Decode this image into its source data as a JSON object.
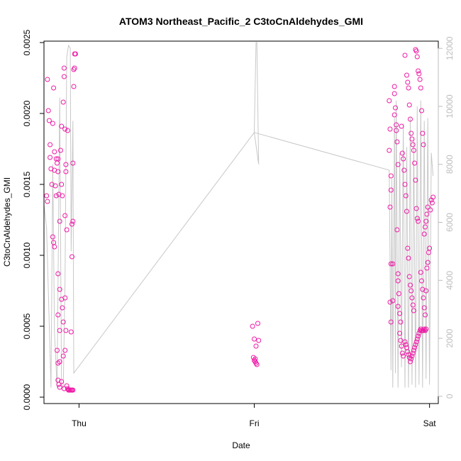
{
  "chart_data": {
    "type": "scatter",
    "title": "ATOM3 Northeast_Pacific_2 C3toCnAldehydes_GMI",
    "xlabel": "Date",
    "ylabel": "C3toCnAldehydes_GMI",
    "x_ticks": [
      "Thu",
      "Fri",
      "Sat"
    ],
    "x_range_days": [
      -0.2,
      2.05
    ],
    "y_ticks": [
      "0.0000",
      "0.0005",
      "0.0010",
      "0.0015",
      "0.0020",
      "0.0025"
    ],
    "y_tick_values": [
      0,
      0.0005,
      0.001,
      0.0015,
      0.002,
      0.0025
    ],
    "y_range": [
      -4.5e-05,
      0.00251
    ],
    "y2_ticks": [
      "0",
      "2000",
      "4000",
      "6000",
      "8000",
      "10000",
      "12000"
    ],
    "y2_tick_values": [
      0,
      2000,
      4000,
      6000,
      8000,
      10000,
      12000
    ],
    "y2_range": [
      -250,
      12250
    ],
    "colors": {
      "points": "#ee1ba6",
      "line": "#c8c8c8",
      "axis": "#000000",
      "secondary_axis": "#bdbdbd"
    },
    "series": [
      {
        "role": "points",
        "points": [
          [
            -0.18,
            0.00224
          ],
          [
            -0.175,
            0.00202
          ],
          [
            -0.17,
            0.00195
          ],
          [
            -0.165,
            0.00178
          ],
          [
            -0.165,
            0.00169
          ],
          [
            -0.16,
            0.00161
          ],
          [
            -0.155,
            0.0015
          ],
          [
            -0.185,
            0.00142
          ],
          [
            -0.18,
            0.00138
          ],
          [
            -0.15,
            0.00193
          ],
          [
            -0.145,
            0.00218
          ],
          [
            -0.14,
            0.00173
          ],
          [
            -0.14,
            0.0016
          ],
          [
            -0.135,
            0.00149
          ],
          [
            -0.13,
            0.00142
          ],
          [
            -0.15,
            0.00113
          ],
          [
            -0.145,
            0.00109
          ],
          [
            -0.14,
            0.00106
          ],
          [
            -0.13,
            0.00168
          ],
          [
            -0.125,
            0.00165
          ],
          [
            -0.12,
            0.00168
          ],
          [
            -0.12,
            0.00159
          ],
          [
            -0.115,
            0.00143
          ],
          [
            -0.11,
            0.00124
          ],
          [
            -0.105,
            0.00174
          ],
          [
            -0.1,
            0.00191
          ],
          [
            -0.1,
            0.0015
          ],
          [
            -0.095,
            0.00142
          ],
          [
            -0.09,
            0.00208
          ],
          [
            -0.085,
            0.00232
          ],
          [
            -0.085,
            0.00226
          ],
          [
            -0.08,
            0.00189
          ],
          [
            -0.075,
            0.00164
          ],
          [
            -0.075,
            0.00159
          ],
          [
            -0.07,
            0.00118
          ],
          [
            -0.08,
            0.00128
          ],
          [
            -0.065,
            0.00188
          ],
          [
            -0.12,
            0.00087
          ],
          [
            -0.11,
            0.00076
          ],
          [
            -0.1,
            0.00069
          ],
          [
            -0.095,
            0.00063
          ],
          [
            -0.08,
            0.0007
          ],
          [
            -0.09,
            0.00053
          ],
          [
            -0.075,
            0.00047
          ],
          [
            -0.12,
            0.00058
          ],
          [
            -0.11,
            0.00047
          ],
          [
            -0.125,
            0.00033
          ],
          [
            -0.12,
            0.00024
          ],
          [
            -0.11,
            0.00025
          ],
          [
            -0.09,
            0.00029
          ],
          [
            -0.08,
            0.00033
          ],
          [
            -0.12,
            0.00012
          ],
          [
            -0.115,
            9e-05
          ],
          [
            -0.11,
            7e-05
          ],
          [
            -0.1,
            0.00011
          ],
          [
            -0.085,
            6e-05
          ],
          [
            -0.07,
            8e-05
          ],
          [
            -0.065,
            6e-05
          ],
          [
            -0.06,
            5e-05
          ],
          [
            -0.055,
            5e-05
          ],
          [
            -0.05,
            5e-05
          ],
          [
            -0.045,
            5e-05
          ],
          [
            -0.04,
            5e-05
          ],
          [
            -0.035,
            5e-05
          ],
          [
            -0.045,
            0.00046
          ],
          [
            -0.04,
            0.00099
          ],
          [
            -0.04,
            0.00122
          ],
          [
            -0.035,
            0.00124
          ],
          [
            -0.035,
            0.00165
          ],
          [
            -0.03,
            0.00219
          ],
          [
            -0.03,
            0.00231
          ],
          [
            -0.025,
            0.00232
          ],
          [
            -0.025,
            0.00242
          ],
          [
            -0.02,
            0.00242
          ],
          [
            0.99,
            0.0005
          ],
          [
            1.0,
            0.00041
          ],
          [
            1.01,
            0.00036
          ],
          [
            1.02,
            0.00052
          ],
          [
            1.025,
            0.0004
          ],
          [
            0.995,
            0.00028
          ],
          [
            1.0,
            0.00026
          ],
          [
            1.005,
            0.00025
          ],
          [
            1.01,
            0.00024
          ],
          [
            1.015,
            0.00023
          ],
          [
            1.005,
            0.00027
          ],
          [
            1.77,
            0.00209
          ],
          [
            1.77,
            0.00174
          ],
          [
            1.775,
            0.00189
          ],
          [
            1.78,
            0.00156
          ],
          [
            1.78,
            0.00146
          ],
          [
            1.775,
            0.00134
          ],
          [
            1.78,
            0.00094
          ],
          [
            1.775,
            0.00067
          ],
          [
            1.78,
            0.00053
          ],
          [
            1.79,
            0.00094
          ],
          [
            1.79,
            0.00068
          ],
          [
            1.8,
            0.00219
          ],
          [
            1.8,
            0.00214
          ],
          [
            1.805,
            0.00204
          ],
          [
            1.8,
            0.00199
          ],
          [
            1.81,
            0.00192
          ],
          [
            1.81,
            0.00188
          ],
          [
            1.815,
            0.0018
          ],
          [
            1.82,
            0.00164
          ],
          [
            1.815,
            0.00118
          ],
          [
            1.82,
            0.00087
          ],
          [
            1.82,
            0.00082
          ],
          [
            1.825,
            0.00073
          ],
          [
            1.82,
            0.00064
          ],
          [
            1.83,
            0.00059
          ],
          [
            1.835,
            0.00053
          ],
          [
            1.84,
            0.00191
          ],
          [
            1.845,
            0.00172
          ],
          [
            1.85,
            0.00168
          ],
          [
            1.855,
            0.0016
          ],
          [
            1.86,
            0.0015
          ],
          [
            1.865,
            0.00142
          ],
          [
            1.87,
            0.00131
          ],
          [
            1.875,
            0.00105
          ],
          [
            1.88,
            0.00098
          ],
          [
            1.885,
            0.00085
          ],
          [
            1.89,
            0.00079
          ],
          [
            1.895,
            0.00075
          ],
          [
            1.9,
            0.0007
          ],
          [
            1.905,
            0.00065
          ],
          [
            1.91,
            0.00061
          ],
          [
            1.86,
            0.00241
          ],
          [
            1.87,
            0.00227
          ],
          [
            1.875,
            0.00222
          ],
          [
            1.88,
            0.00218
          ],
          [
            1.885,
            0.00206
          ],
          [
            1.89,
            0.00196
          ],
          [
            1.895,
            0.00186
          ],
          [
            1.9,
            0.00182
          ],
          [
            1.905,
            0.00178
          ],
          [
            1.91,
            0.00174
          ],
          [
            1.915,
            0.00165
          ],
          [
            1.92,
            0.00153
          ],
          [
            1.925,
            0.00133
          ],
          [
            1.93,
            0.00126
          ],
          [
            1.935,
            0.00124
          ],
          [
            1.92,
            0.00245
          ],
          [
            1.925,
            0.00244
          ],
          [
            1.93,
            0.0024
          ],
          [
            1.935,
            0.0023
          ],
          [
            1.94,
            0.00228
          ],
          [
            1.945,
            0.00224
          ],
          [
            1.95,
            0.00218
          ],
          [
            1.955,
            0.00202
          ],
          [
            1.96,
            0.00186
          ],
          [
            1.965,
            0.00178
          ],
          [
            1.83,
            0.00045
          ],
          [
            1.835,
            0.0004
          ],
          [
            1.84,
            0.00036
          ],
          [
            1.845,
            0.00031
          ],
          [
            1.85,
            0.00029
          ],
          [
            1.86,
            0.00039
          ],
          [
            1.865,
            0.00037
          ],
          [
            1.87,
            0.00035
          ],
          [
            1.875,
            0.00032
          ],
          [
            1.88,
            0.0003
          ],
          [
            1.885,
            0.00028
          ],
          [
            1.89,
            0.00025
          ],
          [
            1.895,
            0.00027
          ],
          [
            1.9,
            0.00029
          ],
          [
            1.905,
            0.00031
          ],
          [
            1.91,
            0.00033
          ],
          [
            1.915,
            0.00035
          ],
          [
            1.92,
            0.00037
          ],
          [
            1.925,
            0.00039
          ],
          [
            1.93,
            0.00041
          ],
          [
            1.935,
            0.00043
          ],
          [
            1.94,
            0.00045
          ],
          [
            1.945,
            0.00047
          ],
          [
            1.95,
            0.00048
          ],
          [
            1.955,
            0.00047
          ],
          [
            1.96,
            0.00047
          ],
          [
            1.965,
            0.00047
          ],
          [
            1.97,
            0.00048
          ],
          [
            1.975,
            0.00047
          ],
          [
            1.98,
            0.00048
          ],
          [
            1.95,
            0.00088
          ],
          [
            1.955,
            0.00082
          ],
          [
            1.96,
            0.00076
          ],
          [
            1.965,
            0.0007
          ],
          [
            1.97,
            0.00063
          ],
          [
            1.975,
            0.00058
          ],
          [
            1.98,
            0.00075
          ],
          [
            1.985,
            0.00091
          ],
          [
            1.99,
            0.00095
          ],
          [
            1.995,
            0.00102
          ],
          [
            2.0,
            0.00105
          ],
          [
            2.005,
            0.00132
          ],
          [
            2.01,
            0.00139
          ],
          [
            2.015,
            0.00137
          ],
          [
            2.02,
            0.00141
          ],
          [
            1.97,
            0.00115
          ],
          [
            1.975,
            0.0012
          ],
          [
            1.98,
            0.00124
          ],
          [
            1.985,
            0.00129
          ],
          [
            1.99,
            0.00134
          ]
        ]
      },
      {
        "role": "line",
        "points": [
          [
            -0.2,
            6600
          ],
          [
            -0.185,
            5800
          ],
          [
            -0.16,
            300
          ],
          [
            -0.15,
            8000
          ],
          [
            -0.14,
            2200
          ],
          [
            -0.125,
            300
          ],
          [
            -0.11,
            10300
          ],
          [
            -0.1,
            400
          ],
          [
            -0.09,
            300
          ],
          [
            -0.08,
            4000
          ],
          [
            -0.07,
            11700
          ],
          [
            -0.06,
            12100
          ],
          [
            -0.05,
            12000
          ],
          [
            -0.045,
            5000
          ],
          [
            -0.035,
            9500
          ],
          [
            -0.03,
            800
          ],
          [
            1.0,
            9100
          ],
          [
            1.01,
            12200
          ],
          [
            1.015,
            12200
          ],
          [
            1.025,
            8000
          ],
          [
            1.0,
            9100
          ],
          [
            1.77,
            7800
          ],
          [
            1.78,
            900
          ],
          [
            1.785,
            7500
          ],
          [
            1.79,
            300
          ],
          [
            1.8,
            9600
          ],
          [
            1.805,
            800
          ],
          [
            1.81,
            10200
          ],
          [
            1.82,
            300
          ],
          [
            1.83,
            8400
          ],
          [
            1.84,
            1000
          ],
          [
            1.85,
            9400
          ],
          [
            1.86,
            300
          ],
          [
            1.87,
            8600
          ],
          [
            1.88,
            300
          ],
          [
            1.89,
            9600
          ],
          [
            1.9,
            400
          ],
          [
            1.91,
            8900
          ],
          [
            1.92,
            300
          ],
          [
            1.93,
            10000
          ],
          [
            1.94,
            400
          ],
          [
            1.95,
            10200
          ],
          [
            1.96,
            300
          ],
          [
            1.97,
            9500
          ],
          [
            1.98,
            600
          ],
          [
            1.99,
            9600
          ],
          [
            2.0,
            400
          ],
          [
            2.01,
            8400
          ],
          [
            2.02,
            7600
          ]
        ]
      }
    ]
  }
}
